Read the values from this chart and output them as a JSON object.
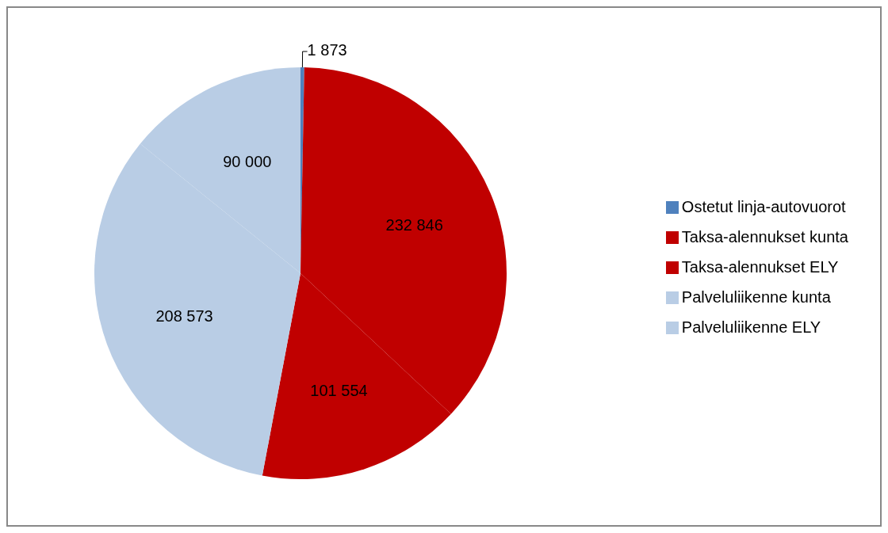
{
  "chart_data": {
    "type": "pie",
    "categories": [
      "Ostetut linja-autovuorot",
      "Taksa-alennukset kunta",
      "Taksa-alennukset ELY",
      "Palveluliikenne kunta",
      "Palveluliikenne ELY"
    ],
    "values": [
      1873,
      232846,
      101554,
      208573,
      90000
    ],
    "colors": [
      "#4f81bd",
      "#c00000",
      "#c00000",
      "#b9cde5",
      "#b9cde5"
    ],
    "value_labels": [
      "1 873",
      "232 846",
      "101 554",
      "208 573",
      "90 000"
    ],
    "legend": "right"
  }
}
